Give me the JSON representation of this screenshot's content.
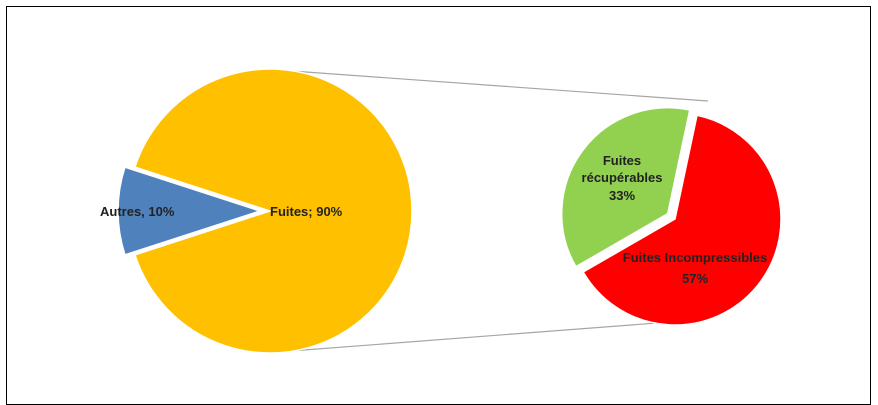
{
  "chart_data": [
    {
      "type": "pie",
      "values": [
        10,
        90
      ],
      "value_labels": [
        "Autres, 10%",
        "Fuites; 90%"
      ],
      "colors": [
        "#4f81bd",
        "#ffc000"
      ]
    },
    {
      "type": "pie",
      "categories": [
        "Fuites récupérables",
        "Fuites Incompressibles"
      ],
      "values": [
        33,
        57
      ],
      "value_labels": [
        "33%",
        "57%"
      ],
      "colors": [
        "#92d050",
        "#ff0000"
      ]
    }
  ]
}
